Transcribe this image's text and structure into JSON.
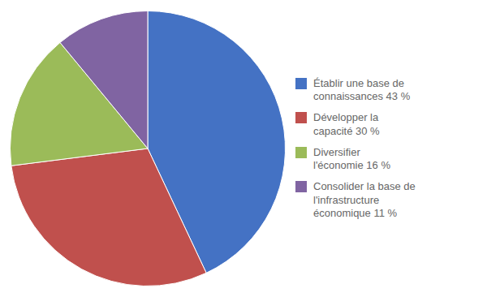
{
  "chart_data": {
    "type": "pie",
    "categories": [
      "Établir une base de\nconnaissances 43 %",
      "Développer la\ncapacité 30 %",
      "Diversifier\nl'économie 16 %",
      "Consolider la base de\nl'infrastructure\néconomique 11 %"
    ],
    "values": [
      43,
      30,
      16,
      11
    ],
    "colors": [
      "#4472C4",
      "#C0504D",
      "#9BBB59",
      "#8064A2"
    ],
    "legend": "right"
  }
}
